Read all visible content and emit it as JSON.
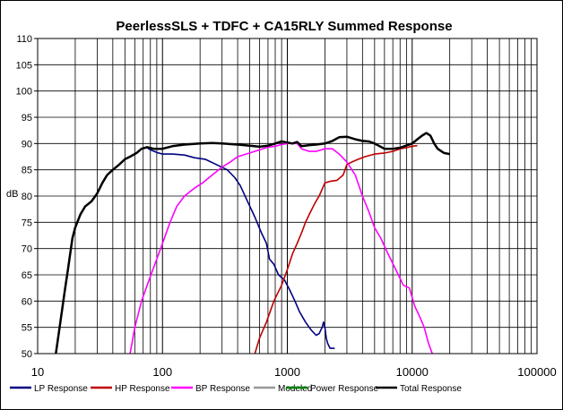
{
  "chart_data": {
    "type": "line",
    "title": "PeerlessSLS + TDFC + CA15RLY  Summed Response",
    "xlabel": "",
    "ylabel": "dB",
    "xscale": "log",
    "xlim": [
      10,
      100000
    ],
    "ylim": [
      50,
      110
    ],
    "x_ticks": [
      "10",
      "100",
      "1000",
      "10000",
      "100000"
    ],
    "y_ticks": [
      "50",
      "55",
      "60",
      "65",
      "70",
      "75",
      "80",
      "85",
      "90",
      "95",
      "100",
      "105",
      "110"
    ],
    "grid": true,
    "legend_position": "bottom",
    "series": [
      {
        "name": "LP Response",
        "color": "#000080",
        "points": [
          [
            14,
            50
          ],
          [
            15,
            55
          ],
          [
            16.5,
            62
          ],
          [
            17.5,
            66
          ],
          [
            19,
            72
          ],
          [
            20,
            74
          ],
          [
            22,
            76.5
          ],
          [
            24,
            78
          ],
          [
            27,
            79
          ],
          [
            30,
            80.5
          ],
          [
            33,
            82.5
          ],
          [
            36,
            84
          ],
          [
            40,
            85
          ],
          [
            45,
            86
          ],
          [
            50,
            87
          ],
          [
            55,
            87.5
          ],
          [
            62,
            88.2
          ],
          [
            68,
            89
          ],
          [
            75,
            89.2
          ],
          [
            80,
            88.8
          ],
          [
            90,
            88.3
          ],
          [
            100,
            88
          ],
          [
            120,
            88
          ],
          [
            150,
            87.8
          ],
          [
            180,
            87.3
          ],
          [
            220,
            87
          ],
          [
            270,
            86
          ],
          [
            330,
            85
          ],
          [
            380,
            83.5
          ],
          [
            420,
            82
          ],
          [
            480,
            79
          ],
          [
            550,
            76
          ],
          [
            620,
            73
          ],
          [
            680,
            71
          ],
          [
            720,
            68
          ],
          [
            780,
            67
          ],
          [
            850,
            65
          ],
          [
            950,
            64
          ],
          [
            1050,
            62
          ],
          [
            1150,
            60
          ],
          [
            1250,
            58
          ],
          [
            1400,
            56
          ],
          [
            1550,
            54.5
          ],
          [
            1700,
            53.5
          ],
          [
            1800,
            53.8
          ],
          [
            1900,
            55
          ],
          [
            1950,
            56
          ],
          [
            2000,
            55
          ],
          [
            2050,
            53
          ],
          [
            2100,
            52
          ],
          [
            2200,
            51
          ],
          [
            2300,
            51
          ],
          [
            2400,
            51
          ]
        ]
      },
      {
        "name": "HP Response",
        "color": "#c00000",
        "points": [
          [
            550,
            50
          ],
          [
            600,
            53
          ],
          [
            680,
            56
          ],
          [
            780,
            60
          ],
          [
            900,
            63
          ],
          [
            1000,
            66
          ],
          [
            1100,
            69
          ],
          [
            1200,
            71
          ],
          [
            1300,
            73
          ],
          [
            1400,
            75
          ],
          [
            1500,
            76.5
          ],
          [
            1650,
            78.5
          ],
          [
            1800,
            80
          ],
          [
            2000,
            82.5
          ],
          [
            2200,
            82.8
          ],
          [
            2500,
            83
          ],
          [
            2800,
            84
          ],
          [
            3000,
            86
          ],
          [
            3300,
            86.5
          ],
          [
            3700,
            87
          ],
          [
            4200,
            87.5
          ],
          [
            5000,
            88
          ],
          [
            6000,
            88.2
          ],
          [
            7000,
            88.5
          ],
          [
            8000,
            89
          ],
          [
            9000,
            89.2
          ],
          [
            10000,
            89.5
          ],
          [
            11000,
            89.6
          ]
        ]
      },
      {
        "name": "BP Response",
        "color": "#ff00ff",
        "points": [
          [
            55,
            50
          ],
          [
            60,
            55
          ],
          [
            68,
            60
          ],
          [
            78,
            64
          ],
          [
            90,
            68
          ],
          [
            100,
            71
          ],
          [
            115,
            75
          ],
          [
            130,
            78
          ],
          [
            150,
            80
          ],
          [
            180,
            81.5
          ],
          [
            210,
            82.5
          ],
          [
            250,
            84
          ],
          [
            300,
            85.5
          ],
          [
            350,
            86.5
          ],
          [
            400,
            87.5
          ],
          [
            500,
            88.2
          ],
          [
            600,
            88.8
          ],
          [
            700,
            89.3
          ],
          [
            800,
            89.5
          ],
          [
            900,
            89.8
          ],
          [
            1000,
            90
          ],
          [
            1200,
            90
          ],
          [
            1300,
            89
          ],
          [
            1500,
            88.5
          ],
          [
            1700,
            88.5
          ],
          [
            2000,
            89
          ],
          [
            2300,
            89
          ],
          [
            2600,
            88
          ],
          [
            3000,
            86.5
          ],
          [
            3500,
            84
          ],
          [
            4000,
            80
          ],
          [
            4500,
            77
          ],
          [
            5000,
            74
          ],
          [
            5600,
            72
          ],
          [
            6400,
            69
          ],
          [
            7400,
            66
          ],
          [
            8500,
            63
          ],
          [
            9500,
            62.5
          ],
          [
            10500,
            59
          ],
          [
            11500,
            57
          ],
          [
            12500,
            55
          ],
          [
            13500,
            52
          ],
          [
            14500,
            50
          ]
        ]
      },
      {
        "name": "Modeled",
        "color": "#999999",
        "points": []
      },
      {
        "name": "Power Response",
        "color": "#008000",
        "points": []
      },
      {
        "name": "Total Response",
        "color": "#000000",
        "points": [
          [
            14,
            50
          ],
          [
            15,
            55
          ],
          [
            16.5,
            62
          ],
          [
            17.5,
            66
          ],
          [
            19,
            72
          ],
          [
            20,
            74
          ],
          [
            22,
            76.5
          ],
          [
            24,
            78
          ],
          [
            27,
            79
          ],
          [
            30,
            80.5
          ],
          [
            33,
            82.5
          ],
          [
            36,
            84
          ],
          [
            40,
            85
          ],
          [
            45,
            86
          ],
          [
            50,
            87
          ],
          [
            55,
            87.5
          ],
          [
            62,
            88.2
          ],
          [
            68,
            89
          ],
          [
            75,
            89.3
          ],
          [
            85,
            89
          ],
          [
            100,
            89
          ],
          [
            120,
            89.5
          ],
          [
            150,
            89.8
          ],
          [
            200,
            90
          ],
          [
            250,
            90.1
          ],
          [
            300,
            90
          ],
          [
            400,
            89.8
          ],
          [
            500,
            89.6
          ],
          [
            600,
            89.4
          ],
          [
            700,
            89.6
          ],
          [
            800,
            90
          ],
          [
            900,
            90.4
          ],
          [
            1000,
            90.2
          ],
          [
            1100,
            90
          ],
          [
            1200,
            90.3
          ],
          [
            1300,
            89.5
          ],
          [
            1500,
            89.7
          ],
          [
            1700,
            89.8
          ],
          [
            2000,
            90
          ],
          [
            2300,
            90.5
          ],
          [
            2600,
            91.2
          ],
          [
            3000,
            91.3
          ],
          [
            3500,
            90.8
          ],
          [
            4000,
            90.5
          ],
          [
            4500,
            90.4
          ],
          [
            5000,
            90
          ],
          [
            6000,
            89
          ],
          [
            7000,
            89
          ],
          [
            8000,
            89.2
          ],
          [
            10000,
            90
          ],
          [
            11000,
            90.8
          ],
          [
            12000,
            91.5
          ],
          [
            13000,
            92
          ],
          [
            14000,
            91.5
          ],
          [
            15000,
            90
          ],
          [
            16000,
            89
          ],
          [
            18000,
            88.2
          ],
          [
            20000,
            88
          ]
        ]
      }
    ]
  }
}
